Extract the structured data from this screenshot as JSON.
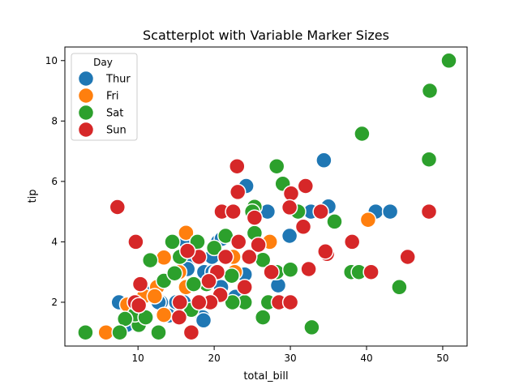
{
  "chart_data": {
    "type": "scatter",
    "title": "Scatterplot with Variable Marker Sizes",
    "xlabel": "total_bill",
    "ylabel": "tip",
    "xlim": [
      0.4,
      53.2
    ],
    "ylim": [
      0.55,
      10.45
    ],
    "x_ticks": [
      10,
      20,
      30,
      40,
      50
    ],
    "y_ticks": [
      2,
      4,
      6,
      8,
      10
    ],
    "grid": false,
    "legend": {
      "title": "Day",
      "placement": "top-left"
    },
    "series": [
      {
        "name": "Thur",
        "color": "#1f77b4",
        "points": [
          [
            34.4,
            6.7
          ],
          [
            24.2,
            5.85
          ],
          [
            32.7,
            5.0
          ],
          [
            41.2,
            5.0
          ],
          [
            43.1,
            5.0
          ],
          [
            35.0,
            5.17
          ],
          [
            27.0,
            5.0
          ],
          [
            29.9,
            4.2
          ],
          [
            20.5,
            4.0
          ],
          [
            21.0,
            4.1
          ],
          [
            16.3,
            4.0
          ],
          [
            16.6,
            3.4
          ],
          [
            18.7,
            3.0
          ],
          [
            19.8,
            3.0
          ],
          [
            20.9,
            2.5
          ],
          [
            22.8,
            2.18
          ],
          [
            24.0,
            2.92
          ],
          [
            28.4,
            2.56
          ],
          [
            18.2,
            2.0
          ],
          [
            16.0,
            2.0
          ],
          [
            15.0,
            2.0
          ],
          [
            13.0,
            2.0
          ],
          [
            11.0,
            2.3
          ],
          [
            10.3,
            1.66
          ],
          [
            8.5,
            1.25
          ],
          [
            7.5,
            2.0
          ],
          [
            12.7,
            2.0
          ],
          [
            18.5,
            1.5
          ],
          [
            14.0,
            1.56
          ],
          [
            18.6,
            1.4
          ],
          [
            19.7,
            3.5
          ],
          [
            16.5,
            3.1
          ]
        ]
      },
      {
        "name": "Fri",
        "color": "#ff7f0e",
        "points": [
          [
            40.2,
            4.73
          ],
          [
            27.3,
            4.0
          ],
          [
            22.5,
            3.5
          ],
          [
            16.3,
            4.3
          ],
          [
            13.4,
            3.48
          ],
          [
            12.5,
            2.5
          ],
          [
            10.8,
            2.2
          ],
          [
            12.2,
            2.2
          ],
          [
            9.5,
            2.0
          ],
          [
            8.6,
            1.92
          ],
          [
            5.8,
            1.0
          ],
          [
            13.4,
            1.58
          ],
          [
            16.3,
            2.5
          ],
          [
            15.4,
            3.0
          ],
          [
            22.7,
            3.0
          ],
          [
            28.0,
            3.0
          ]
        ]
      },
      {
        "name": "Sat",
        "color": "#2ca02c",
        "points": [
          [
            50.8,
            10.0
          ],
          [
            48.3,
            9.0
          ],
          [
            39.4,
            7.58
          ],
          [
            48.2,
            6.73
          ],
          [
            28.2,
            6.5
          ],
          [
            29.0,
            5.92
          ],
          [
            25.3,
            5.16
          ],
          [
            25.0,
            5.0
          ],
          [
            35.8,
            4.67
          ],
          [
            31.0,
            5.0
          ],
          [
            21.5,
            4.2
          ],
          [
            25.3,
            4.29
          ],
          [
            26.4,
            3.4
          ],
          [
            14.5,
            4.0
          ],
          [
            20.3,
            3.0
          ],
          [
            22.3,
            2.88
          ],
          [
            28.2,
            3.0
          ],
          [
            30.0,
            3.08
          ],
          [
            32.8,
            1.17
          ],
          [
            44.3,
            2.5
          ],
          [
            38.0,
            3.0
          ],
          [
            39.0,
            3.0
          ],
          [
            26.4,
            1.5
          ],
          [
            29.8,
            2.0
          ],
          [
            27.1,
            2.0
          ],
          [
            24.0,
            2.0
          ],
          [
            22.4,
            2.0
          ],
          [
            17.0,
            1.75
          ],
          [
            13.4,
            2.71
          ],
          [
            14.8,
            2.96
          ],
          [
            11.6,
            3.39
          ],
          [
            10.1,
            1.25
          ],
          [
            9.6,
            1.6
          ],
          [
            8.3,
            1.45
          ],
          [
            7.6,
            1.0
          ],
          [
            3.1,
            1.0
          ],
          [
            12.7,
            1.0
          ],
          [
            11.0,
            1.5
          ],
          [
            15.5,
            3.5
          ],
          [
            17.8,
            4.0
          ],
          [
            20.0,
            3.8
          ],
          [
            19.0,
            2.6
          ],
          [
            17.3,
            2.6
          ]
        ]
      },
      {
        "name": "Sun",
        "color": "#d62728",
        "points": [
          [
            48.2,
            5.0
          ],
          [
            45.4,
            3.5
          ],
          [
            40.6,
            3.0
          ],
          [
            38.1,
            4.0
          ],
          [
            34.8,
            3.6
          ],
          [
            34.6,
            3.68
          ],
          [
            32.4,
            3.1
          ],
          [
            31.7,
            4.5
          ],
          [
            32.0,
            5.85
          ],
          [
            30.1,
            5.6
          ],
          [
            29.9,
            5.14
          ],
          [
            23.0,
            6.5
          ],
          [
            23.1,
            5.65
          ],
          [
            21.0,
            5.0
          ],
          [
            22.5,
            5.0
          ],
          [
            25.3,
            4.8
          ],
          [
            25.8,
            3.9
          ],
          [
            24.6,
            3.5
          ],
          [
            23.2,
            4.0
          ],
          [
            21.5,
            3.5
          ],
          [
            20.4,
            3.0
          ],
          [
            18.0,
            3.5
          ],
          [
            16.5,
            3.7
          ],
          [
            19.3,
            2.7
          ],
          [
            20.8,
            2.24
          ],
          [
            19.5,
            2.0
          ],
          [
            18.0,
            2.0
          ],
          [
            15.5,
            2.0
          ],
          [
            15.4,
            1.5
          ],
          [
            17.0,
            1.0
          ],
          [
            10.3,
            2.6
          ],
          [
            9.6,
            2.0
          ],
          [
            10.1,
            1.9
          ],
          [
            9.7,
            4.0
          ],
          [
            7.3,
            5.15
          ],
          [
            28.5,
            2.0
          ],
          [
            30.0,
            2.0
          ],
          [
            27.5,
            3.0
          ],
          [
            34.0,
            5.0
          ],
          [
            24.0,
            2.5
          ]
        ]
      }
    ]
  }
}
